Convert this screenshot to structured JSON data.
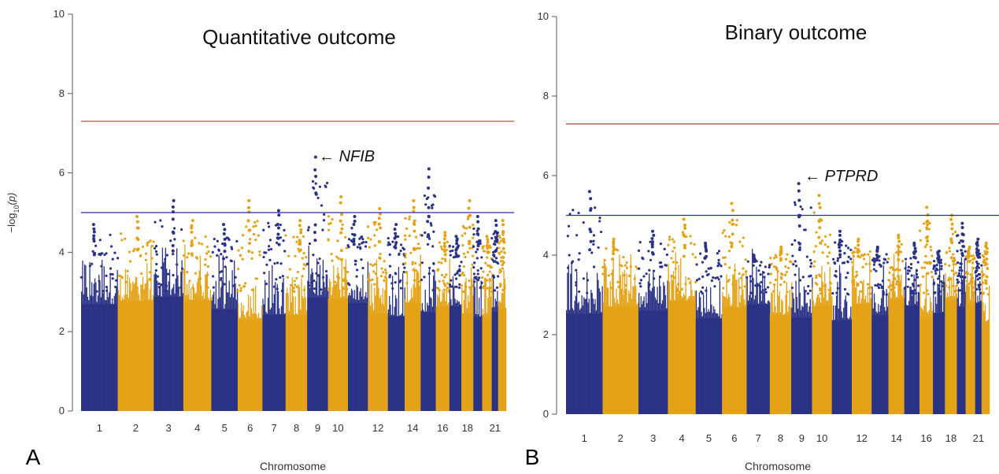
{
  "colors": {
    "blue": "#2b3386",
    "gold": "#e4a317",
    "red_line": "#c0392b",
    "blue_line": "#2c2ca8"
  },
  "chart_data": [
    {
      "type": "scatter",
      "panel_label": "A",
      "title": "Quantitative outcome",
      "xlabel": "Chromosome",
      "ylabel_base": "−log",
      "ylabel_sub": "10",
      "ylabel_rest": "(p)",
      "ylim": [
        0,
        10
      ],
      "yticks": [
        "0",
        "2",
        "4",
        "6",
        "8",
        "10"
      ],
      "xtick_labels": [
        "1",
        "2",
        "3",
        "4",
        "5",
        "6",
        "7",
        "8",
        "9",
        "10",
        "12",
        "14",
        "16",
        "18",
        "21"
      ],
      "genome_wide_threshold": 7.3,
      "suggestive_threshold": 5.0,
      "annotation": {
        "arrow": "←",
        "label": "NFIB",
        "chromosome": 9,
        "value": 6.4
      },
      "chromosome_peaks": [
        4.7,
        4.9,
        5.3,
        4.8,
        4.7,
        5.3,
        5.05,
        4.8,
        6.4,
        5.4,
        4.9,
        5.1,
        4.7,
        5.3,
        6.1,
        4.5,
        4.4,
        5.3,
        4.9,
        4.4,
        4.8,
        4.8
      ]
    },
    {
      "type": "scatter",
      "panel_label": "B",
      "title": "Binary outcome",
      "xlabel": "Chromosome",
      "ylim": [
        0,
        10
      ],
      "yticks": [
        "0",
        "2",
        "4",
        "6",
        "8",
        "10"
      ],
      "xtick_labels": [
        "1",
        "2",
        "3",
        "4",
        "5",
        "6",
        "7",
        "8",
        "9",
        "10",
        "12",
        "14",
        "16",
        "18",
        "21"
      ],
      "genome_wide_threshold": 7.3,
      "suggestive_threshold": 5.0,
      "annotation": {
        "arrow": "←",
        "label": "PTPRD",
        "chromosome": 9,
        "value": 5.8
      },
      "chromosome_peaks": [
        5.6,
        4.4,
        4.6,
        4.9,
        4.3,
        5.3,
        4.0,
        4.2,
        5.8,
        5.5,
        4.6,
        4.4,
        4.2,
        4.5,
        4.3,
        5.2,
        4.1,
        5.0,
        4.8,
        4.2,
        4.4,
        4.3
      ]
    }
  ]
}
